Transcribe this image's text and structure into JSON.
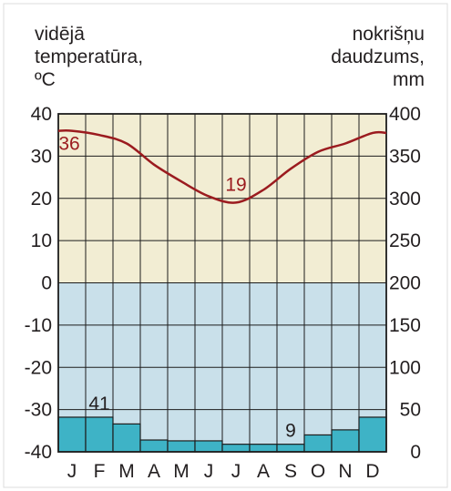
{
  "chart_data": {
    "type": "climate",
    "left_axis_label": [
      "vidējā",
      "temperatūra,",
      "ºC"
    ],
    "right_axis_label": [
      "nokrišņu",
      "daudzums,",
      "mm"
    ],
    "categories": [
      "J",
      "F",
      "M",
      "A",
      "M",
      "J",
      "J",
      "A",
      "S",
      "O",
      "N",
      "D"
    ],
    "temperature": {
      "type": "line",
      "ylim": [
        -40,
        40
      ],
      "ticks": [
        "40",
        "30",
        "20",
        "10",
        "0",
        "-10",
        "-20",
        "-30",
        "-40"
      ],
      "values": [
        36,
        35,
        33,
        28,
        24,
        20.5,
        19,
        22,
        27,
        31,
        33,
        35.5
      ],
      "color": "#9b1b1f",
      "annotations": [
        {
          "month_index": 0,
          "text": "36"
        },
        {
          "month_index": 6,
          "text": "19"
        }
      ]
    },
    "precipitation": {
      "type": "bar",
      "ylim": [
        0,
        400
      ],
      "ticks": [
        "400",
        "350",
        "300",
        "250",
        "200",
        "150",
        "100",
        "50",
        "0"
      ],
      "values": [
        41,
        41,
        33,
        14,
        13,
        13,
        9,
        9,
        9,
        20,
        26,
        41
      ],
      "color": "#3eb3c6",
      "annotations": [
        {
          "month_index": 1,
          "text": "41"
        },
        {
          "month_index": 8,
          "text": "9"
        }
      ]
    },
    "background_colors": {
      "warm": "#f2edd3",
      "cold": "#c9e0ea"
    }
  }
}
